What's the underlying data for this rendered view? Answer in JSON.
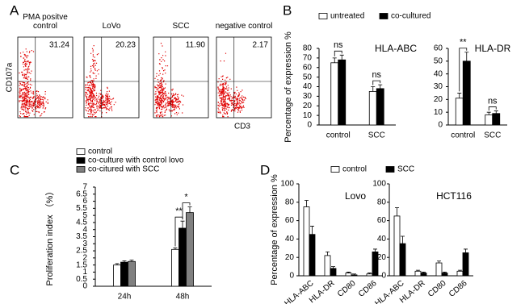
{
  "panel_labels": [
    "A",
    "B",
    "C",
    "D"
  ],
  "flow": {
    "y_label": "CD107a",
    "x_label": "CD3",
    "plots": [
      {
        "title": "PMA positve control",
        "value": "31.24"
      },
      {
        "title": "LoVo",
        "value": "20.23"
      },
      {
        "title": "SCC",
        "value": "11.90"
      },
      {
        "title": "negative control",
        "value": "2.17"
      }
    ]
  },
  "chart_data": [
    {
      "type": "bar",
      "title": "HLA-ABC",
      "ylabel": "Percentage of expression %",
      "categories": [
        "control",
        "SCC"
      ],
      "series": [
        {
          "name": "untreated",
          "color": "#ffffff",
          "values": [
            65,
            35
          ],
          "errors": [
            5,
            5
          ]
        },
        {
          "name": "co-cultured",
          "color": "#000000",
          "values": [
            68,
            38
          ],
          "errors": [
            5,
            4
          ]
        }
      ],
      "ylim": [
        0,
        80
      ],
      "yticks": [
        0,
        10,
        20,
        30,
        40,
        50,
        60,
        70,
        80
      ],
      "annotations": [
        "ns",
        "ns"
      ]
    },
    {
      "type": "bar",
      "title": "HLA-DR",
      "categories": [
        "control",
        "SCC"
      ],
      "series": [
        {
          "color": "#ffffff",
          "values": [
            21,
            8
          ],
          "errors": [
            4,
            2
          ]
        },
        {
          "color": "#000000",
          "values": [
            50,
            9
          ],
          "errors": [
            7,
            2
          ]
        }
      ],
      "ylim": [
        0,
        60
      ],
      "yticks": [
        0,
        10,
        20,
        30,
        40,
        50,
        60
      ],
      "annotations": [
        "**",
        "ns"
      ]
    },
    {
      "type": "bar",
      "ylabel": "Proliferation index （%）",
      "categories": [
        "24h",
        "48h"
      ],
      "series": [
        {
          "name": "control",
          "color": "#ffffff",
          "values": [
            1.5,
            2.6
          ],
          "errors": [
            0.1,
            0.1
          ]
        },
        {
          "name": "co-culture with control lovo",
          "color": "#000000",
          "values": [
            1.7,
            4.1
          ],
          "errors": [
            0.1,
            0.5
          ]
        },
        {
          "name": "co-citured with SCC",
          "color": "#808080",
          "values": [
            1.75,
            5.2
          ],
          "errors": [
            0.1,
            0.4
          ]
        }
      ],
      "ylim": [
        0,
        7
      ],
      "yticks": [
        0,
        0.5,
        1,
        1.5,
        2,
        2.5,
        3,
        3.5,
        4,
        4.5,
        5,
        5.5,
        6,
        6.5,
        7
      ],
      "annotations": [
        "**",
        "*"
      ]
    },
    {
      "type": "bar",
      "title": "Lovo",
      "ylabel": "Percentage of expression %",
      "categories": [
        "HLA-ABC",
        "HLA-DR",
        "CD80",
        "CD86"
      ],
      "series": [
        {
          "name": "control",
          "color": "#ffffff",
          "values": [
            75,
            22,
            3,
            2
          ],
          "errors": [
            7,
            4,
            1,
            1
          ]
        },
        {
          "name": "SCC",
          "color": "#000000",
          "values": [
            45,
            8,
            1,
            26
          ],
          "errors": [
            9,
            2,
            1,
            3
          ]
        }
      ],
      "ylim": [
        0,
        100
      ],
      "yticks": [
        0,
        20,
        40,
        60,
        80,
        100
      ]
    },
    {
      "type": "bar",
      "title": "HCT116",
      "categories": [
        "HLA-ABC",
        "HLA-DR",
        "CD80",
        "CD86"
      ],
      "series": [
        {
          "color": "#ffffff",
          "values": [
            65,
            5,
            14,
            5
          ],
          "errors": [
            9,
            1,
            2,
            1
          ]
        },
        {
          "color": "#000000",
          "values": [
            35,
            3,
            3,
            25
          ],
          "errors": [
            8,
            1,
            1,
            4
          ]
        }
      ],
      "ylim": [
        0,
        100
      ],
      "yticks": [
        0,
        20,
        40,
        60,
        80,
        100
      ]
    }
  ]
}
